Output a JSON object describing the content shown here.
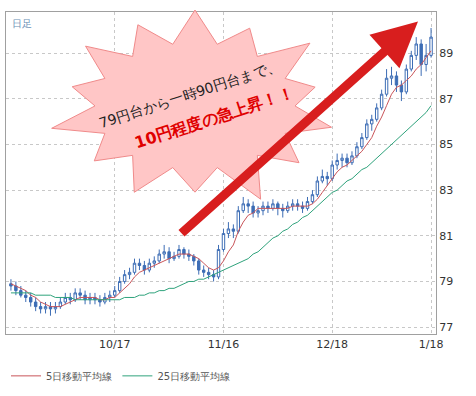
{
  "chart_data": {
    "type": "candlestick",
    "categories": [
      null,
      null,
      null,
      null,
      null,
      null,
      null,
      null,
      null,
      null,
      null,
      null,
      null,
      null,
      null,
      null,
      null,
      null,
      null,
      null,
      null,
      "10/17",
      null,
      null,
      null,
      null,
      null,
      null,
      null,
      null,
      null,
      null,
      null,
      null,
      null,
      null,
      null,
      null,
      null,
      null,
      null,
      null,
      null,
      "11/16",
      null,
      null,
      null,
      null,
      null,
      null,
      null,
      null,
      null,
      null,
      null,
      null,
      null,
      null,
      null,
      null,
      null,
      null,
      null,
      null,
      null,
      "12/18",
      null,
      null,
      null,
      null,
      null,
      null,
      null,
      null,
      null,
      null,
      null,
      null,
      null,
      null,
      null,
      null,
      null,
      null,
      null,
      "1/18"
    ],
    "open": [
      78.9,
      78.8,
      78.6,
      78.4,
      78.3,
      78.1,
      77.9,
      77.8,
      77.9,
      77.8,
      77.9,
      78.1,
      78.3,
      78.2,
      78.5,
      78.4,
      78.2,
      78.3,
      78.2,
      78.1,
      78.3,
      78.4,
      78.6,
      79.0,
      79.3,
      79.4,
      79.8,
      79.7,
      79.5,
      79.8,
      79.9,
      80.2,
      80.3,
      80.0,
      80.1,
      80.4,
      80.2,
      80.1,
      79.9,
      79.5,
      79.4,
      79.3,
      79.2,
      80.4,
      81.1,
      81.3,
      81.2,
      82.1,
      82.4,
      82.3,
      82.0,
      82.1,
      82.3,
      82.2,
      82.4,
      82.2,
      82.1,
      82.3,
      82.4,
      82.3,
      82.2,
      82.5,
      82.8,
      83.4,
      83.6,
      83.5,
      84.1,
      84.3,
      84.4,
      84.2,
      84.5,
      84.9,
      85.3,
      85.9,
      86.1,
      86.6,
      87.2,
      87.9,
      88.0,
      87.6,
      87.3,
      88.3,
      88.9,
      89.4,
      88.5,
      88.9
    ],
    "high": [
      79.1,
      79.0,
      78.8,
      78.6,
      78.5,
      78.3,
      78.1,
      78.1,
      78.1,
      78.1,
      78.3,
      78.5,
      78.5,
      78.7,
      78.7,
      78.6,
      78.5,
      78.5,
      78.4,
      78.5,
      78.6,
      78.8,
      79.2,
      79.5,
      79.6,
      80.0,
      80.0,
      79.9,
      80.0,
      80.1,
      80.4,
      80.6,
      80.5,
      80.3,
      80.6,
      80.5,
      80.4,
      80.2,
      80.0,
      79.7,
      79.6,
      79.5,
      80.6,
      81.3,
      81.6,
      81.5,
      82.3,
      82.7,
      82.6,
      82.5,
      82.3,
      82.5,
      82.5,
      82.6,
      82.5,
      82.4,
      82.5,
      82.6,
      82.6,
      82.5,
      82.7,
      83.0,
      83.6,
      83.9,
      83.8,
      84.3,
      84.6,
      84.6,
      84.6,
      84.7,
      85.1,
      85.5,
      86.1,
      86.3,
      86.8,
      87.4,
      88.3,
      88.4,
      88.2,
      87.8,
      88.5,
      89.1,
      89.7,
      89.6,
      89.4,
      90.1
    ],
    "low": [
      78.6,
      78.4,
      78.3,
      78.1,
      77.9,
      77.7,
      77.6,
      77.6,
      77.5,
      77.6,
      77.8,
      78.0,
      78.0,
      78.1,
      78.2,
      78.0,
      78.0,
      78.0,
      77.9,
      78.0,
      78.1,
      78.3,
      78.5,
      78.9,
      79.1,
      79.3,
      79.5,
      79.3,
      79.4,
      79.6,
      79.8,
      80.0,
      79.8,
      79.9,
      80.0,
      80.0,
      79.9,
      79.7,
      79.3,
      79.2,
      79.1,
      79.0,
      79.1,
      80.3,
      80.9,
      80.9,
      81.1,
      82.0,
      82.0,
      81.8,
      81.8,
      81.9,
      82.0,
      82.1,
      81.9,
      81.8,
      82.0,
      82.1,
      82.1,
      82.0,
      82.1,
      82.4,
      82.7,
      83.3,
      83.2,
      83.4,
      83.9,
      84.0,
      84.0,
      84.1,
      84.4,
      84.8,
      85.2,
      85.6,
      86.0,
      86.5,
      87.1,
      87.6,
      87.3,
      86.9,
      87.2,
      88.2,
      88.7,
      88.0,
      88.2,
      88.8
    ],
    "close": [
      78.8,
      78.6,
      78.4,
      78.3,
      78.1,
      77.9,
      77.8,
      77.9,
      77.8,
      77.9,
      78.1,
      78.3,
      78.2,
      78.5,
      78.4,
      78.2,
      78.3,
      78.2,
      78.1,
      78.3,
      78.4,
      78.6,
      79.0,
      79.3,
      79.4,
      79.8,
      79.7,
      79.5,
      79.8,
      79.9,
      80.2,
      80.3,
      80.0,
      80.1,
      80.4,
      80.2,
      80.1,
      79.9,
      79.5,
      79.4,
      79.3,
      79.2,
      80.4,
      81.1,
      81.3,
      81.2,
      82.1,
      82.4,
      82.3,
      82.0,
      82.1,
      82.3,
      82.2,
      82.4,
      82.2,
      82.1,
      82.3,
      82.4,
      82.3,
      82.2,
      82.5,
      82.8,
      83.4,
      83.6,
      83.5,
      84.1,
      84.3,
      84.4,
      84.2,
      84.5,
      84.9,
      85.3,
      85.9,
      86.1,
      86.6,
      87.2,
      87.9,
      88.0,
      87.6,
      87.3,
      88.3,
      88.9,
      89.4,
      88.5,
      88.9,
      89.7
    ],
    "series": [
      {
        "name": "5日移動平均線",
        "type": "line",
        "color": "#c9555a",
        "values": [
          78.9,
          78.8,
          78.7,
          78.6,
          78.4,
          78.3,
          78.1,
          78.0,
          77.9,
          77.9,
          77.9,
          78.0,
          78.1,
          78.2,
          78.3,
          78.3,
          78.3,
          78.3,
          78.2,
          78.2,
          78.3,
          78.3,
          78.5,
          78.7,
          78.9,
          79.2,
          79.4,
          79.5,
          79.6,
          79.7,
          79.8,
          79.9,
          80.0,
          80.1,
          80.2,
          80.2,
          80.2,
          80.1,
          80.0,
          79.8,
          79.6,
          79.5,
          79.6,
          79.9,
          80.3,
          80.6,
          81.2,
          81.6,
          81.9,
          82.0,
          82.2,
          82.2,
          82.2,
          82.2,
          82.2,
          82.2,
          82.2,
          82.3,
          82.3,
          82.3,
          82.3,
          82.4,
          82.6,
          82.9,
          83.2,
          83.5,
          83.8,
          84.0,
          84.1,
          84.3,
          84.5,
          84.7,
          85.0,
          85.3,
          85.8,
          86.2,
          86.7,
          87.2,
          87.5,
          87.6,
          87.8,
          88.0,
          88.3,
          88.5,
          88.8,
          89.1
        ]
      },
      {
        "name": "25日移動平均線",
        "type": "line",
        "color": "#2fa37c",
        "values": [
          78.5,
          78.5,
          78.5,
          78.5,
          78.5,
          78.4,
          78.4,
          78.4,
          78.4,
          78.3,
          78.3,
          78.3,
          78.3,
          78.2,
          78.2,
          78.2,
          78.2,
          78.2,
          78.2,
          78.2,
          78.2,
          78.2,
          78.2,
          78.3,
          78.3,
          78.3,
          78.4,
          78.4,
          78.5,
          78.5,
          78.6,
          78.6,
          78.7,
          78.7,
          78.8,
          78.9,
          79.0,
          79.0,
          79.1,
          79.1,
          79.2,
          79.3,
          79.4,
          79.5,
          79.6,
          79.7,
          79.8,
          79.9,
          80.0,
          80.2,
          80.3,
          80.5,
          80.7,
          80.9,
          81.0,
          81.2,
          81.3,
          81.5,
          81.6,
          81.8,
          81.9,
          82.1,
          82.3,
          82.5,
          82.7,
          82.9,
          83.0,
          83.2,
          83.4,
          83.5,
          83.7,
          83.9,
          84.0,
          84.2,
          84.4,
          84.6,
          84.8,
          85.0,
          85.2,
          85.4,
          85.6,
          85.8,
          86.0,
          86.2,
          86.4,
          86.7
        ]
      }
    ],
    "ylim": [
      76.7,
      90.8
    ],
    "yticks": [
      77,
      79,
      81,
      83,
      85,
      87,
      89
    ],
    "grid": true,
    "legend": "bottom left",
    "annotations": [
      "日足",
      "79円台から一時90円台まで、",
      "10円程度の急上昇！！"
    ]
  }
}
